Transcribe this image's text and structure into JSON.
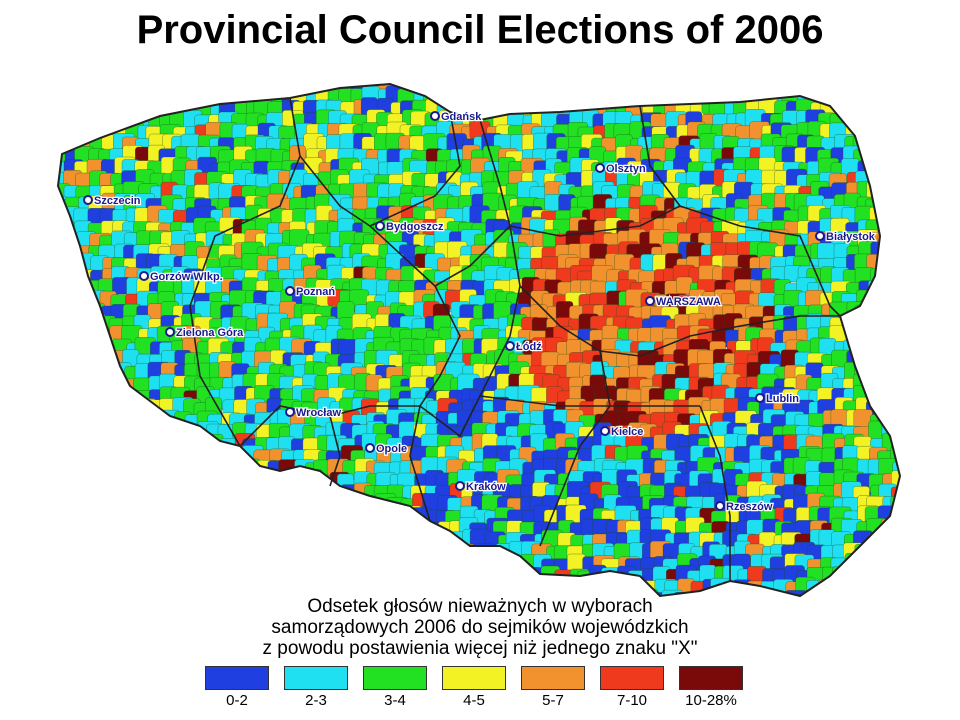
{
  "title": "Provincial Council Elections of 2006",
  "caption": [
    "Odsetek głosów nieważnych w wyborach",
    "samorządowych 2006 do sejmików wojewódzkich",
    "z powodu postawienia więcej niż jednego znaku \"X\""
  ],
  "legend": [
    {
      "label": "0-2",
      "color": "#1f3fe0"
    },
    {
      "label": "2-3",
      "color": "#1ee0f0"
    },
    {
      "label": "3-4",
      "color": "#22e022"
    },
    {
      "label": "4-5",
      "color": "#f2f224"
    },
    {
      "label": "5-7",
      "color": "#f2922e"
    },
    {
      "label": "7-10",
      "color": "#f03a1e"
    },
    {
      "label": "10-28%",
      "color": "#7a0a0a"
    }
  ],
  "cities": [
    "Gdańsk",
    "Olsztyn",
    "Szczecin",
    "Bydgoszcz",
    "Białystok",
    "Gorzów Wlkp.",
    "Poznań",
    "WARSZAWA",
    "Zielona Góra",
    "Łódź",
    "Lublin",
    "Wrocław",
    "Kielce",
    "Opole",
    "Kraków",
    "Rzeszów"
  ]
}
